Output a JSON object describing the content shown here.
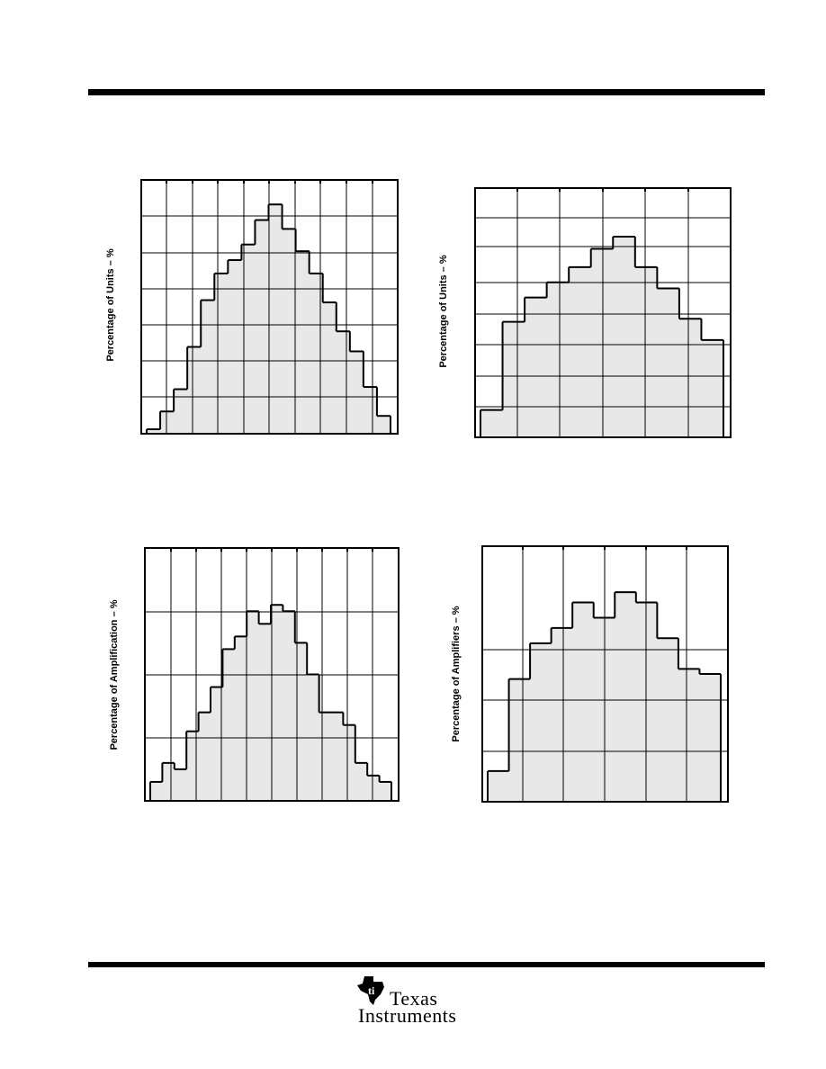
{
  "header": {},
  "chart_data": [
    {
      "type": "histogram",
      "ylabel": "Percentage of Units – %",
      "grid": true,
      "bins": 18,
      "heights": [
        0.2,
        1.0,
        2.0,
        3.9,
        6.0,
        7.2,
        7.8,
        8.5,
        9.6,
        10.3,
        9.2,
        8.2,
        7.2,
        5.9,
        4.6,
        3.7,
        2.1,
        0.8
      ],
      "ylim": [
        0,
        11.4
      ]
    },
    {
      "type": "histogram",
      "ylabel": "Percentage of Units – %",
      "grid": true,
      "bins": 11,
      "heights": [
        0.9,
        3.8,
        4.6,
        5.1,
        5.6,
        6.2,
        6.6,
        5.6,
        4.9,
        3.9,
        3.2
      ],
      "ylim": [
        0,
        8.2
      ]
    },
    {
      "type": "histogram",
      "ylabel": "Percentage of Amplification – %",
      "grid": true,
      "bins": 20,
      "heights": [
        0.3,
        0.6,
        0.5,
        1.1,
        1.4,
        1.8,
        2.4,
        2.6,
        3.0,
        2.8,
        3.1,
        3.0,
        2.5,
        2.0,
        1.4,
        1.4,
        1.2,
        0.6,
        0.4,
        0.3
      ],
      "ylim": [
        0,
        4.0
      ]
    },
    {
      "type": "histogram",
      "ylabel": "Percentage of Amplifiers – %",
      "grid": true,
      "bins": 11,
      "heights": [
        0.6,
        2.4,
        3.1,
        3.4,
        3.9,
        3.6,
        4.1,
        3.9,
        3.2,
        2.6,
        2.5
      ],
      "ylim": [
        0,
        5.0
      ]
    }
  ],
  "footer": {
    "logo_text_1": "Texas",
    "logo_text_2": "Instruments"
  }
}
